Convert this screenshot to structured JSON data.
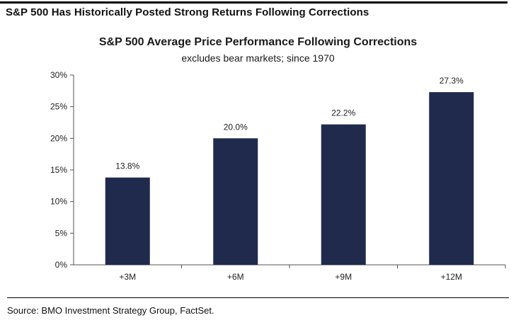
{
  "header": "S&P 500 Has Historically Posted Strong Returns Following Corrections",
  "source": "Source: BMO Investment Strategy Group, FactSet.",
  "chart_data": {
    "type": "bar",
    "title": "S&P 500 Average Price Performance Following Corrections",
    "subtitle": "excludes bear markets; since 1970",
    "categories": [
      "+3M",
      "+6M",
      "+9M",
      "+12M"
    ],
    "values": [
      13.8,
      20.0,
      22.2,
      27.3
    ],
    "data_labels": [
      "13.8%",
      "20.0%",
      "22.2%",
      "27.3%"
    ],
    "ylim": [
      0,
      30
    ],
    "yticks": [
      0,
      5,
      10,
      15,
      20,
      25,
      30
    ],
    "ytick_labels": [
      "0%",
      "5%",
      "10%",
      "15%",
      "20%",
      "25%",
      "30%"
    ],
    "bar_color": "#1f2a4d",
    "grid": false,
    "legend": "none"
  }
}
